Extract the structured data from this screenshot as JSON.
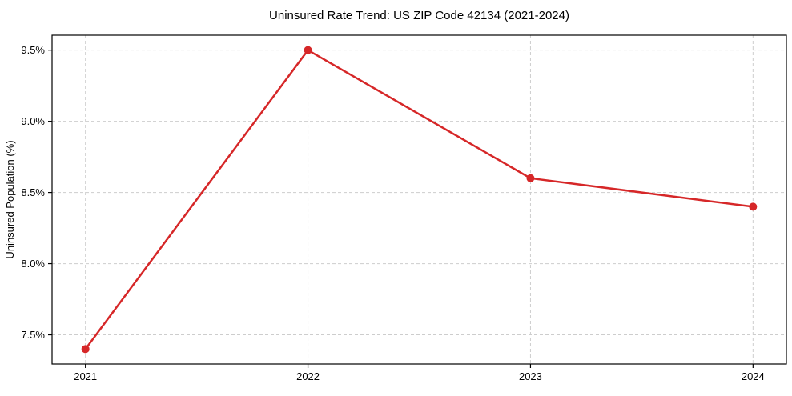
{
  "chart_data": {
    "type": "line",
    "title": "Uninsured Rate Trend: US ZIP Code 42134 (2021-2024)",
    "xlabel": "",
    "ylabel": "Uninsured Population (%)",
    "x": [
      2021,
      2022,
      2023,
      2024
    ],
    "series": [
      {
        "name": "uninsured-rate",
        "values": [
          7.4,
          9.5,
          8.6,
          8.4
        ],
        "color": "#d62728",
        "line_width": 2.5,
        "marker": "circle",
        "marker_radius": 5
      }
    ],
    "xticks": {
      "values": [
        2021,
        2022,
        2023,
        2024
      ],
      "labels": [
        "2021",
        "2022",
        "2023",
        "2024"
      ]
    },
    "yticks": {
      "values": [
        7.5,
        8.0,
        8.5,
        9.0,
        9.5
      ],
      "labels": [
        "7.5%",
        "8.0%",
        "8.5%",
        "9.0%",
        "9.5%"
      ]
    },
    "xlim": [
      2020.85,
      2024.15
    ],
    "ylim": [
      7.295,
      9.605
    ],
    "grid": true,
    "grid_color": "#cdcdcd",
    "grid_dash": "4 3",
    "spine_color": "#000000",
    "tick_color": "#000000",
    "text_color": "#000000",
    "background": "#ffffff",
    "legend": "none"
  }
}
